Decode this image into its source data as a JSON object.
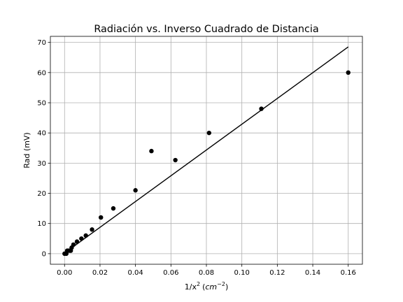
{
  "chart_data": {
    "type": "scatter",
    "title": "Radiación vs. Inverso Cuadrado de Distancia",
    "xlabel_base": "1/x",
    "xlabel_exp": "2",
    "xlabel_unit_base": "cm",
    "xlabel_unit_exp": "−2",
    "ylabel": "Rad (mV)",
    "xlim": [
      -0.008,
      0.168
    ],
    "ylim": [
      -3.5,
      72.0
    ],
    "xticks": [
      0.0,
      0.02,
      0.04,
      0.06,
      0.08,
      0.1,
      0.12,
      0.14,
      0.16
    ],
    "xtick_labels": [
      "0.00",
      "0.02",
      "0.04",
      "0.06",
      "0.08",
      "0.10",
      "0.12",
      "0.14",
      "0.16"
    ],
    "yticks": [
      0,
      10,
      20,
      30,
      40,
      50,
      60,
      70
    ],
    "ytick_labels": [
      "0",
      "10",
      "20",
      "30",
      "40",
      "50",
      "60",
      "70"
    ],
    "grid": true,
    "points": [
      {
        "x": 0.0,
        "y": 0
      },
      {
        "x": 0.001,
        "y": 0
      },
      {
        "x": 0.0015,
        "y": 1
      },
      {
        "x": 0.002,
        "y": 1
      },
      {
        "x": 0.003,
        "y": 1
      },
      {
        "x": 0.0035,
        "y": 1
      },
      {
        "x": 0.004,
        "y": 2
      },
      {
        "x": 0.005,
        "y": 3
      },
      {
        "x": 0.007,
        "y": 4
      },
      {
        "x": 0.0095,
        "y": 5
      },
      {
        "x": 0.012,
        "y": 6
      },
      {
        "x": 0.0155,
        "y": 8
      },
      {
        "x": 0.0205,
        "y": 12
      },
      {
        "x": 0.0275,
        "y": 15
      },
      {
        "x": 0.04,
        "y": 21
      },
      {
        "x": 0.049,
        "y": 34
      },
      {
        "x": 0.0625,
        "y": 31
      },
      {
        "x": 0.0815,
        "y": 40
      },
      {
        "x": 0.111,
        "y": 48
      },
      {
        "x": 0.16,
        "y": 60
      }
    ],
    "fit_line": {
      "x": [
        0.0,
        0.16
      ],
      "y": [
        0.2,
        68.5
      ]
    },
    "marker_color": "#000000",
    "line_color": "#000000"
  }
}
